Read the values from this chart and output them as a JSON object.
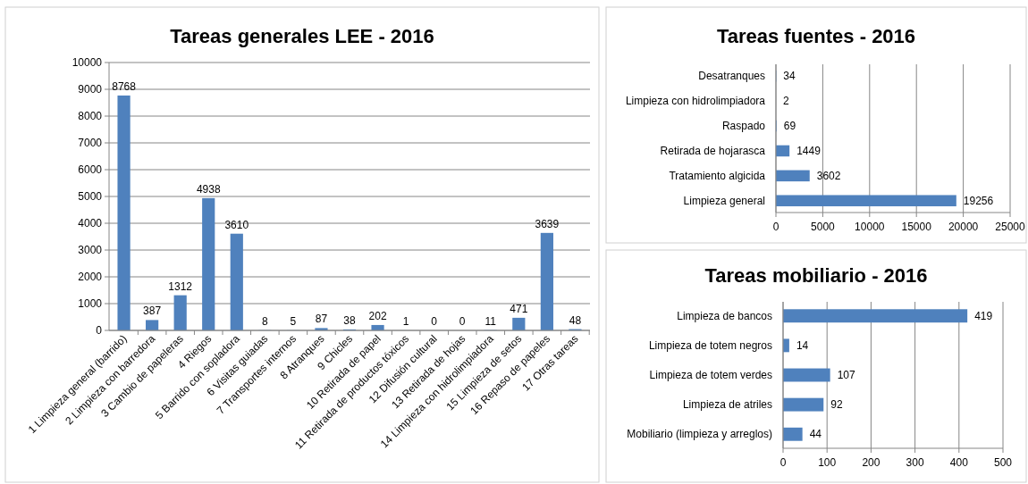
{
  "chart_data": [
    {
      "type": "bar",
      "title": "Tareas generales LEE - 2016",
      "categories": [
        "1 Limpieza general (barrido)",
        "2 Limpieza con barredora",
        "3 Cambio de papeleras",
        "4 Riegos",
        "5 Barrido con sopladora",
        "6 Visitas guiadas",
        "7 Transportes internos",
        "8 Atranques",
        "9 Chicles",
        "10 Retirada de papel",
        "11 Retirada de productos tóxicos",
        "12 Difusión cultural",
        "13 Retirada de hojas",
        "14 Limpieza con hidrolimpiadora",
        "15 Limpieza de setos",
        "16 Repaso de papeles",
        "17 Otras tareas"
      ],
      "values": [
        8768,
        387,
        1312,
        4938,
        3610,
        8,
        5,
        87,
        38,
        202,
        1,
        0,
        0,
        11,
        471,
        3639,
        48
      ],
      "color": "#4f81bd",
      "ylim": [
        0,
        10000
      ],
      "yticks": [
        0,
        1000,
        2000,
        3000,
        4000,
        5000,
        6000,
        7000,
        8000,
        9000,
        10000
      ],
      "grid": "y",
      "data_labels": true
    },
    {
      "type": "bar",
      "orientation": "horizontal",
      "title": "Tareas fuentes - 2016",
      "categories": [
        "Desatranques",
        "Limpieza con hidrolimpiadora",
        "Raspado",
        "Retirada de hojarasca",
        "Tratamiento algicida",
        "Limpieza general"
      ],
      "values": [
        34,
        2,
        69,
        1449,
        3602,
        19256
      ],
      "color": "#4f81bd",
      "xlim": [
        0,
        25000
      ],
      "xticks": [
        0,
        5000,
        10000,
        15000,
        20000,
        25000
      ],
      "grid": "x",
      "data_labels": true
    },
    {
      "type": "bar",
      "orientation": "horizontal",
      "title": "Tareas mobiliario - 2016",
      "categories": [
        "Limpieza de bancos",
        "Limpieza de totem negros",
        "Limpieza de totem verdes",
        "Limpieza de atriles",
        "Mobiliario (limpieza y arreglos)"
      ],
      "values": [
        419,
        14,
        107,
        92,
        44
      ],
      "color": "#4f81bd",
      "xlim": [
        0,
        500
      ],
      "xticks": [
        0,
        100,
        200,
        300,
        400,
        500
      ],
      "grid": "x",
      "data_labels": true
    }
  ]
}
